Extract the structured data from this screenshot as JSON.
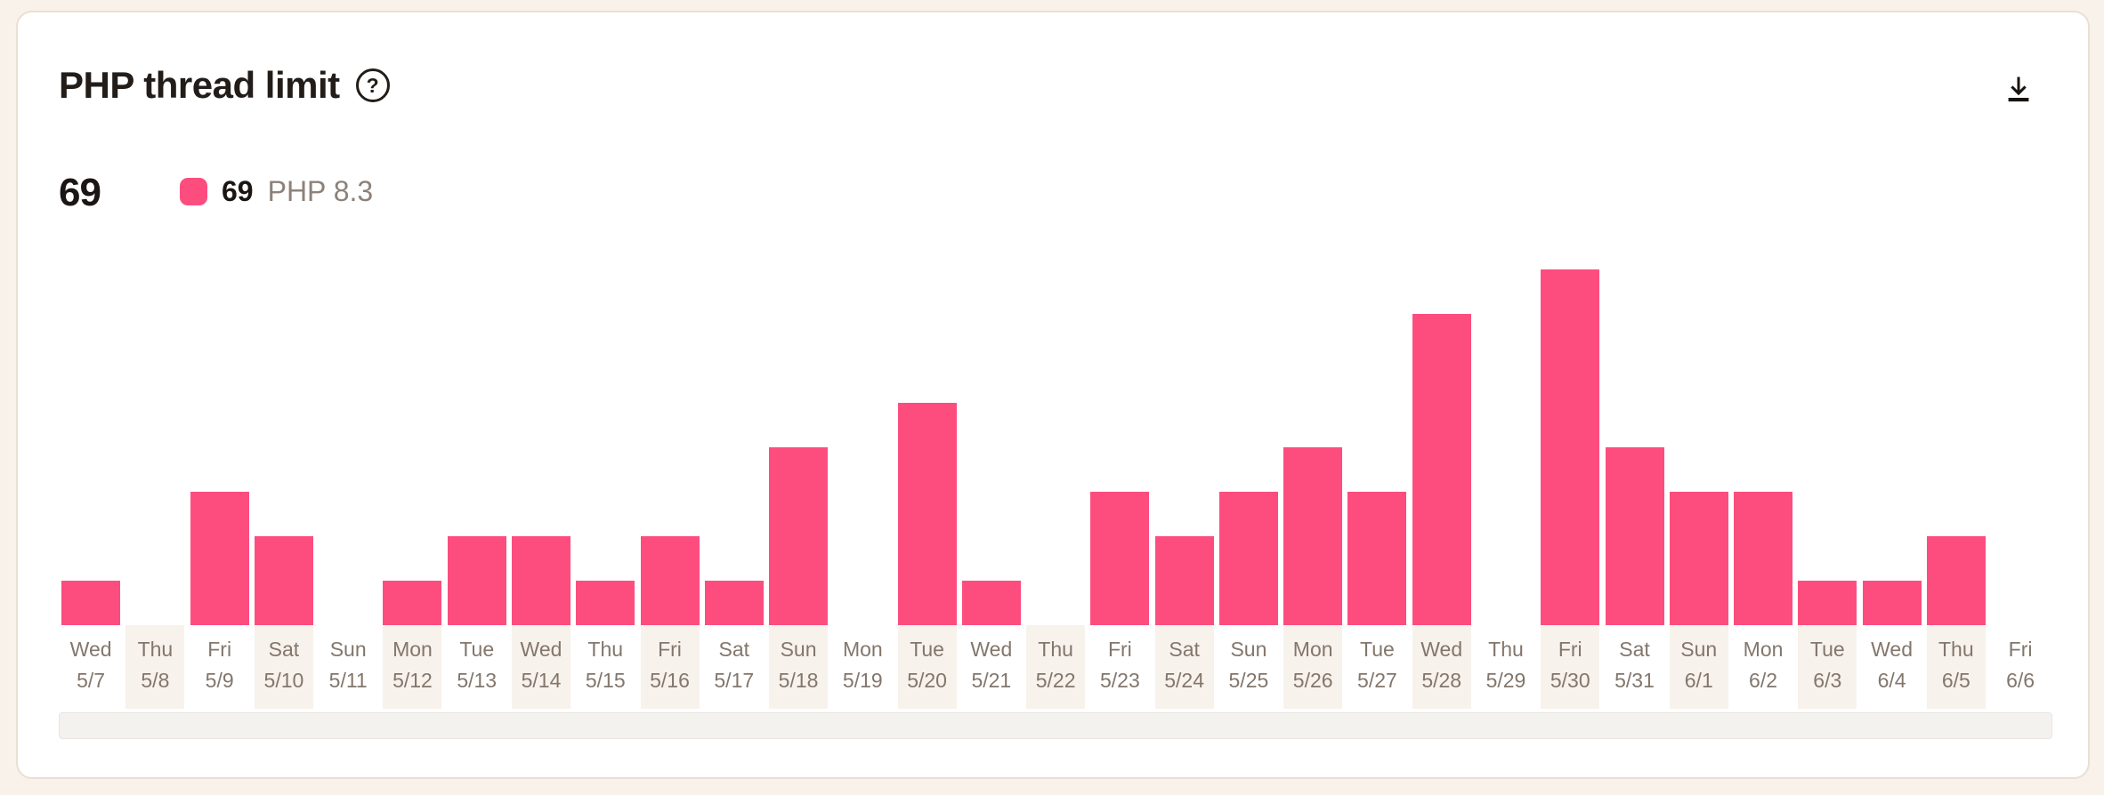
{
  "page": {
    "background_color": "#f9f2ea"
  },
  "card": {
    "title": "PHP thread limit",
    "summary": {
      "value": "69"
    },
    "legend": {
      "value": "69",
      "series_label": "PHP 8.3",
      "swatch_color": "#FD4D7E"
    },
    "icons": {
      "help": "question-mark-circle",
      "download": "download-arrow-to-line"
    }
  },
  "chart_data": {
    "type": "bar",
    "title": "PHP thread limit",
    "categories_day": [
      "Wed",
      "Thu",
      "Fri",
      "Sat",
      "Sun",
      "Mon",
      "Tue",
      "Wed",
      "Thu",
      "Fri",
      "Sat",
      "Sun",
      "Mon",
      "Tue",
      "Wed",
      "Thu",
      "Fri",
      "Sat",
      "Sun",
      "Mon",
      "Tue",
      "Wed",
      "Thu",
      "Fri",
      "Sat",
      "Sun",
      "Mon",
      "Tue",
      "Wed",
      "Thu",
      "Fri"
    ],
    "categories_date": [
      "5/7",
      "5/8",
      "5/9",
      "5/10",
      "5/11",
      "5/12",
      "5/13",
      "5/14",
      "5/15",
      "5/16",
      "5/17",
      "5/18",
      "5/19",
      "5/20",
      "5/21",
      "5/22",
      "5/23",
      "5/24",
      "5/25",
      "5/26",
      "5/27",
      "5/28",
      "5/29",
      "5/30",
      "5/31",
      "6/1",
      "6/2",
      "6/3",
      "6/4",
      "6/5",
      "6/6"
    ],
    "series": [
      {
        "name": "PHP 8.3",
        "color": "#FD4D7E",
        "values": [
          1,
          0,
          3,
          2,
          0,
          1,
          2,
          2,
          1,
          2,
          1,
          4,
          0,
          5,
          1,
          0,
          3,
          2,
          3,
          4,
          3,
          7,
          0,
          8,
          4,
          3,
          3,
          1,
          1,
          2,
          0
        ]
      }
    ],
    "total": 69,
    "ylim": [
      0,
      8.6
    ],
    "y_axis_visible": false,
    "grid": false,
    "legend_position": "top-left",
    "alternate_column_shading": true,
    "shaded_column_color": "#f8f2ec"
  }
}
